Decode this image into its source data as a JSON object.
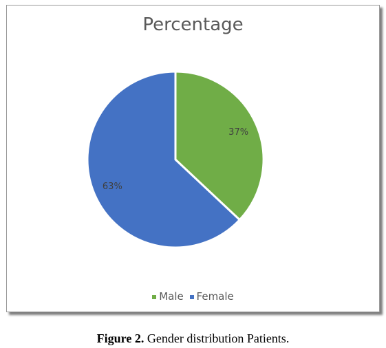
{
  "chart_data": {
    "type": "pie",
    "title": "Percentage",
    "categories": [
      "Male",
      "Female"
    ],
    "values": [
      37,
      63
    ],
    "labels": [
      "37%",
      "63%"
    ],
    "colors": [
      "#70ad47",
      "#4472c4"
    ],
    "legend_position": "bottom"
  },
  "caption": {
    "label": "Figure 2.",
    "text": "Gender distribution Patients."
  }
}
